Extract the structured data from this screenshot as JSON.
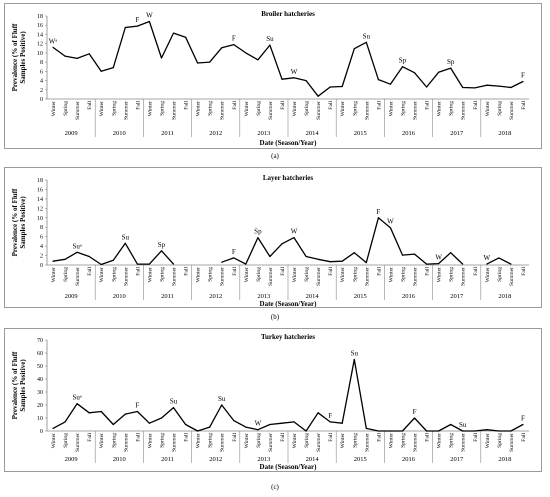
{
  "captions": [
    "(a)",
    "(b)",
    "(c)"
  ],
  "season_labels": [
    "Winter",
    "Spring",
    "Summer",
    "Fall"
  ],
  "years": [
    "2009",
    "2010",
    "2011",
    "2012",
    "2013",
    "2014",
    "2015",
    "2016",
    "2017",
    "2018"
  ],
  "chart_data": [
    {
      "type": "line",
      "title": "Broiler hatcheries",
      "ylabel": "Prevalence (% of Fluff Samples Positive)",
      "xlabel": "Date (Season/Year)",
      "ylim": [
        0,
        18
      ],
      "yticks": [
        0,
        2,
        4,
        6,
        8,
        10,
        12,
        14,
        16,
        18
      ],
      "grid": false,
      "values": [
        11.2,
        9.3,
        8.8,
        9.8,
        6.0,
        6.8,
        15.5,
        15.8,
        16.8,
        8.9,
        14.3,
        13.4,
        7.8,
        8.0,
        11.1,
        11.8,
        10.0,
        8.5,
        11.7,
        4.3,
        4.6,
        4.0,
        0.6,
        2.6,
        2.7,
        10.9,
        12.3,
        4.2,
        3.2,
        7.0,
        5.7,
        2.6,
        5.8,
        6.7,
        2.5,
        2.4,
        3.0,
        2.8,
        2.5,
        3.8
      ],
      "annotations": [
        {
          "index": 0,
          "text": "Wᵃ"
        },
        {
          "index": 7,
          "text": "F"
        },
        {
          "index": 8,
          "text": "W"
        },
        {
          "index": 15,
          "text": "F"
        },
        {
          "index": 18,
          "text": "Su"
        },
        {
          "index": 20,
          "text": "W"
        },
        {
          "index": 26,
          "text": "Su"
        },
        {
          "index": 29,
          "text": "Sp"
        },
        {
          "index": 33,
          "text": "Sp"
        },
        {
          "index": 39,
          "text": "F"
        }
      ]
    },
    {
      "type": "line",
      "title": "Layer hatcheries",
      "ylabel": "Prevalence (% of Fluff Samples Positive)",
      "xlabel": "Date (Season/Year)",
      "ylim": [
        0,
        18
      ],
      "yticks": [
        0,
        2,
        4,
        6,
        8,
        10,
        12,
        14,
        16,
        18
      ],
      "grid": false,
      "values": [
        0.8,
        1.2,
        2.7,
        1.8,
        0.1,
        1.0,
        4.6,
        0.2,
        0.2,
        3.0,
        0.2,
        null,
        null,
        null,
        0.6,
        1.5,
        0.2,
        5.8,
        1.8,
        4.5,
        5.8,
        1.8,
        1.2,
        0.7,
        0.8,
        2.6,
        0.5,
        10.0,
        7.9,
        2.1,
        2.3,
        0.2,
        0.3,
        2.6,
        0.2,
        null,
        0.2,
        1.5,
        0.2,
        null
      ],
      "annotations": [
        {
          "index": 2,
          "text": "Suᵃ"
        },
        {
          "index": 6,
          "text": "Su"
        },
        {
          "index": 9,
          "text": "Sp"
        },
        {
          "index": 15,
          "text": "F"
        },
        {
          "index": 17,
          "text": "Sp"
        },
        {
          "index": 20,
          "text": "W"
        },
        {
          "index": 27,
          "text": "F"
        },
        {
          "index": 28,
          "text": "W"
        },
        {
          "index": 32,
          "text": "W"
        },
        {
          "index": 36,
          "text": "W"
        }
      ]
    },
    {
      "type": "line",
      "title": "Turkey hatcheries",
      "ylabel": "Prevalence (% of Fluff Samples Positive)",
      "xlabel": "Date (Season/Year)",
      "ylim": [
        0,
        70
      ],
      "yticks": [
        0,
        10,
        20,
        30,
        40,
        50,
        60,
        70
      ],
      "grid": false,
      "values": [
        2,
        7,
        21,
        14,
        15,
        5,
        13,
        15,
        6,
        10,
        18,
        5,
        0,
        3,
        20,
        8,
        3,
        1,
        5,
        6,
        7,
        0,
        14,
        7,
        6,
        55,
        2,
        0,
        0,
        0,
        10,
        0,
        0,
        5,
        0,
        0,
        1,
        0,
        0,
        5
      ],
      "annotations": [
        {
          "index": 2,
          "text": "Suᵃ"
        },
        {
          "index": 7,
          "text": "F"
        },
        {
          "index": 10,
          "text": "Su"
        },
        {
          "index": 14,
          "text": "Su"
        },
        {
          "index": 17,
          "text": "W"
        },
        {
          "index": 23,
          "text": "F"
        },
        {
          "index": 25,
          "text": "Su"
        },
        {
          "index": 30,
          "text": "F"
        },
        {
          "index": 34,
          "text": "Su"
        },
        {
          "index": 39,
          "text": "F"
        }
      ]
    }
  ]
}
